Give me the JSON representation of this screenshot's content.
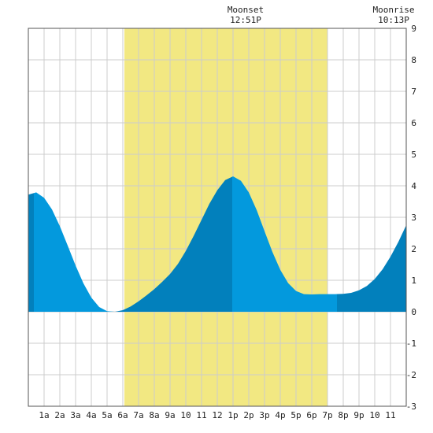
{
  "chart_data": {
    "type": "area",
    "title": "",
    "xlabel": "",
    "ylabel": "",
    "xlim": [
      0,
      24
    ],
    "ylim": [
      -3,
      9
    ],
    "grid": true,
    "x_tick_labels": [
      "1a",
      "2a",
      "3a",
      "4a",
      "5a",
      "6a",
      "7a",
      "8a",
      "9a",
      "10",
      "11",
      "12",
      "1p",
      "2p",
      "3p",
      "4p",
      "5p",
      "6p",
      "7p",
      "8p",
      "9p",
      "10",
      "11"
    ],
    "y_tick_labels": [
      "-3",
      "-2",
      "-1",
      "0",
      "1",
      "2",
      "3",
      "4",
      "5",
      "6",
      "7",
      "8",
      "9"
    ],
    "daylight": {
      "start_hour": 6.1,
      "end_hour": 19.0
    },
    "tide_extremes": [
      {
        "hour": 0.35,
        "height": 3.8,
        "kind": "high"
      },
      {
        "hour": 5.5,
        "height": 0.0,
        "kind": "low"
      },
      {
        "hour": 12.95,
        "height": 4.3,
        "kind": "high"
      },
      {
        "hour": 19.6,
        "height": 0.55,
        "kind": "low"
      },
      {
        "hour": 24.0,
        "height": 2.75,
        "kind": "rising"
      }
    ],
    "series": [
      {
        "x": [
          0,
          0.5,
          1,
          1.5,
          2,
          2.5,
          3,
          3.5,
          4,
          4.5,
          5,
          5.5,
          6,
          6.5,
          7,
          7.5,
          8,
          8.5,
          9,
          9.5,
          10,
          10.5,
          11,
          11.5,
          12,
          12.5,
          13,
          13.5,
          14,
          14.5,
          15,
          15.5,
          16,
          16.5,
          17,
          17.5,
          18,
          18.5,
          19,
          19.5,
          20,
          20.5,
          21,
          21.5,
          22,
          22.5,
          23,
          23.5,
          24
        ],
        "values": [
          3.72,
          3.79,
          3.62,
          3.25,
          2.72,
          2.1,
          1.47,
          0.9,
          0.45,
          0.15,
          0.02,
          0.0,
          0.05,
          0.17,
          0.33,
          0.52,
          0.72,
          0.95,
          1.2,
          1.52,
          1.93,
          2.41,
          2.92,
          3.43,
          3.86,
          4.18,
          4.3,
          4.16,
          3.79,
          3.23,
          2.56,
          1.9,
          1.33,
          0.91,
          0.66,
          0.56,
          0.55,
          0.56,
          0.56,
          0.56,
          0.57,
          0.6,
          0.68,
          0.82,
          1.04,
          1.35,
          1.75,
          2.22,
          2.75
        ]
      }
    ],
    "annotations": {
      "moonset": {
        "label": "Moonset",
        "time": "12:51P",
        "hour": 12.85
      },
      "moonrise": {
        "label": "Moonrise",
        "time": "10:13P",
        "hour": 22.22
      }
    },
    "colors": {
      "daylight": "#f2e882",
      "tide_light": "#0399dd",
      "tide_dark": "#0280bc",
      "grid": "#cccccc",
      "axis": "#555555"
    }
  }
}
